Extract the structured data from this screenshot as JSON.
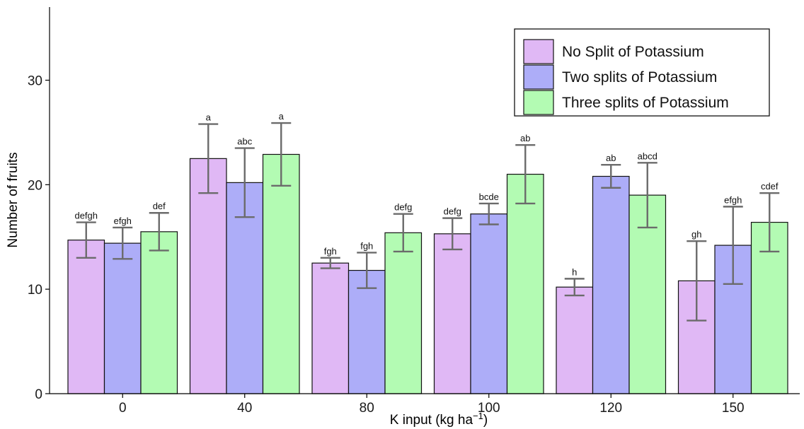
{
  "chart_data": {
    "type": "bar",
    "xlabel": "K input (kg ha",
    "xlabel_sup": "−1",
    "xlabel_close": ")",
    "ylabel": "Number of fruits",
    "ylim": [
      0,
      37
    ],
    "yticks": [
      0,
      10,
      20,
      30
    ],
    "categories": [
      "0",
      "40",
      "80",
      "100",
      "120",
      "150"
    ],
    "legend_position": "top-right",
    "grid": false,
    "series": [
      {
        "name": "No Split of Potassium",
        "color": "#e0b8f5",
        "values": [
          14.7,
          22.5,
          12.5,
          15.3,
          10.2,
          10.8
        ],
        "error": [
          1.7,
          3.3,
          0.5,
          1.5,
          0.8,
          3.8
        ],
        "labels": [
          "defgh",
          "a",
          "fgh",
          "defg",
          "h",
          "gh"
        ]
      },
      {
        "name": "Two splits of Potassium",
        "color": "#adadf8",
        "values": [
          14.4,
          20.2,
          11.8,
          17.2,
          20.8,
          14.2
        ],
        "error": [
          1.5,
          3.3,
          1.7,
          1.0,
          1.1,
          3.7
        ],
        "labels": [
          "efgh",
          "abc",
          "fgh",
          "bcde",
          "ab",
          "efgh"
        ]
      },
      {
        "name": "Three splits of Potassium",
        "color": "#b3fbb3",
        "values": [
          15.5,
          22.9,
          15.4,
          21.0,
          19.0,
          16.4
        ],
        "error": [
          1.8,
          3.0,
          1.8,
          2.8,
          3.1,
          2.8
        ],
        "labels": [
          "def",
          "a",
          "defg",
          "ab",
          "abcd",
          "cdef"
        ]
      }
    ]
  }
}
